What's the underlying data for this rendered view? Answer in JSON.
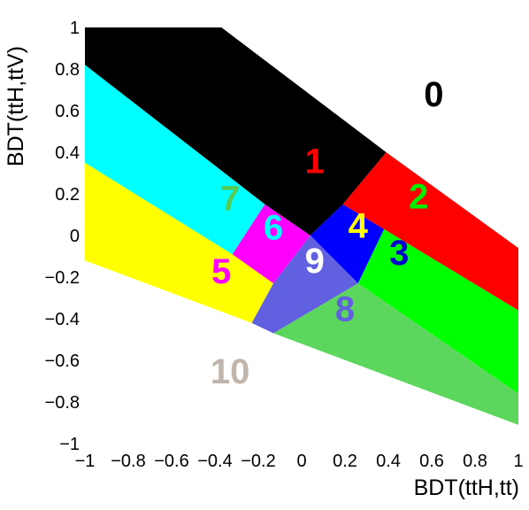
{
  "chart_data": {
    "type": "area",
    "title": "",
    "xlabel": "BDT(ttH,tt)",
    "ylabel": "BDT(ttH,ttV)",
    "xlim": [
      -1,
      1
    ],
    "ylim": [
      -1,
      1
    ],
    "grid": false,
    "x_ticks": [
      -1,
      -0.8,
      -0.6,
      -0.4,
      -0.2,
      0,
      0.2,
      0.4,
      0.6,
      0.8,
      1
    ],
    "x_tick_labels": [
      "−1",
      "−0.8",
      "−0.6",
      "−0.4",
      "−0.2",
      "0",
      "0.2",
      "0.4",
      "0.6",
      "0.8",
      "1"
    ],
    "y_ticks": [
      -1,
      -0.8,
      -0.6,
      -0.4,
      -0.2,
      0,
      0.2,
      0.4,
      0.6,
      0.8,
      1
    ],
    "y_tick_labels": [
      "−1",
      "−0.8",
      "−0.6",
      "−0.4",
      "−0.2",
      "0",
      "0.2",
      "0.4",
      "0.6",
      "0.8",
      "1"
    ],
    "regions": [
      {
        "id": "region-0",
        "label": "0",
        "color": "#ffffff",
        "label_color": "#000000",
        "label_at": [
          0.61,
          0.68
        ],
        "polygon": [
          [
            -1,
            1
          ],
          [
            1,
            1
          ],
          [
            1,
            1
          ],
          [
            -1,
            1
          ]
        ]
      },
      {
        "id": "region-1",
        "label": "1",
        "color": "#000000",
        "label_color": "#ff0000",
        "label_at": [
          0.06,
          0.36
        ],
        "polygon": [
          [
            -1,
            1
          ],
          [
            -0.37,
            1
          ],
          [
            0.39,
            0.4
          ],
          [
            0.19,
            0.15
          ],
          [
            0.04,
            0.0
          ],
          [
            -0.17,
            0.15
          ],
          [
            -1,
            0.82
          ]
        ]
      },
      {
        "id": "region-2",
        "label": "2",
        "color": "#ff0000",
        "label_color": "#00ee00",
        "label_at": [
          0.54,
          0.19
        ],
        "polygon": [
          [
            0.39,
            0.4
          ],
          [
            1,
            -0.06
          ],
          [
            1,
            -0.36
          ],
          [
            0.38,
            0.03
          ],
          [
            0.19,
            0.15
          ]
        ]
      },
      {
        "id": "region-3",
        "label": "3",
        "color": "#00ff00",
        "label_color": "#0000cc",
        "label_at": [
          0.45,
          -0.08
        ],
        "polygon": [
          [
            0.38,
            0.03
          ],
          [
            1,
            -0.36
          ],
          [
            1,
            -0.76
          ],
          [
            0.26,
            -0.23
          ]
        ]
      },
      {
        "id": "region-4",
        "label": "4",
        "color": "#0000ff",
        "label_color": "#ffff00",
        "label_at": [
          0.26,
          0.05
        ],
        "polygon": [
          [
            0.19,
            0.15
          ],
          [
            0.38,
            0.03
          ],
          [
            0.26,
            -0.23
          ],
          [
            0.04,
            0.0
          ]
        ]
      },
      {
        "id": "region-5",
        "label": "5",
        "color": "#ffff00",
        "label_color": "#ff00ff",
        "label_at": [
          -0.37,
          -0.17
        ],
        "polygon": [
          [
            -1,
            0.35
          ],
          [
            -0.32,
            -0.09
          ],
          [
            -0.13,
            -0.23
          ],
          [
            -0.23,
            -0.42
          ],
          [
            -1,
            -0.12
          ]
        ]
      },
      {
        "id": "region-6",
        "label": "6",
        "color": "#ff00ff",
        "label_color": "#00ffff",
        "label_at": [
          -0.13,
          0.04
        ],
        "polygon": [
          [
            -0.17,
            0.15
          ],
          [
            0.04,
            0.0
          ],
          [
            -0.13,
            -0.23
          ],
          [
            -0.32,
            -0.09
          ]
        ]
      },
      {
        "id": "region-7",
        "label": "7",
        "color": "#00ffff",
        "label_color": "#55cc55",
        "label_at": [
          -0.33,
          0.18
        ],
        "polygon": [
          [
            -1,
            0.82
          ],
          [
            -0.17,
            0.15
          ],
          [
            -0.32,
            -0.09
          ],
          [
            -1,
            0.35
          ]
        ]
      },
      {
        "id": "region-8",
        "label": "8",
        "color": "#5cd65c",
        "label_color": "#6060e0",
        "label_at": [
          0.2,
          -0.35
        ],
        "polygon": [
          [
            -0.13,
            -0.47
          ],
          [
            0.26,
            -0.23
          ],
          [
            1,
            -0.76
          ],
          [
            1,
            -0.91
          ]
        ]
      },
      {
        "id": "region-9",
        "label": "9",
        "color": "#6060e0",
        "label_color": "#ffffff",
        "label_at": [
          0.06,
          -0.12
        ],
        "polygon": [
          [
            -0.13,
            -0.23
          ],
          [
            0.04,
            0.0
          ],
          [
            0.26,
            -0.23
          ],
          [
            -0.13,
            -0.47
          ],
          [
            -0.23,
            -0.42
          ]
        ]
      },
      {
        "id": "region-10",
        "label": "10",
        "color": "#ffffff",
        "label_color": "#c0b4ab",
        "label_at": [
          -0.33,
          -0.65
        ],
        "polygon": []
      }
    ]
  }
}
